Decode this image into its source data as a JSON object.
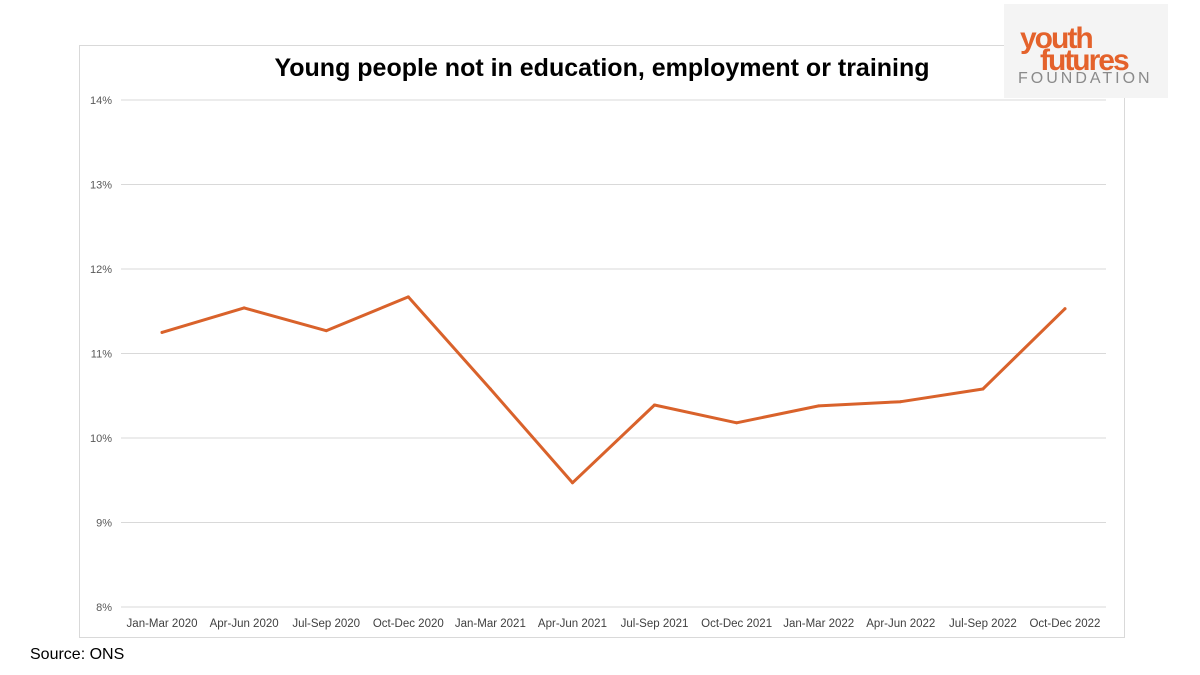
{
  "logo": {
    "line1": "youth",
    "line2": "futures",
    "line3": "FOUNDATION"
  },
  "source": "Source: ONS",
  "colors": {
    "line": "#d9622b",
    "grid": "#d9d9d9",
    "logo_orange": "#e4622b"
  },
  "chart_data": {
    "type": "line",
    "title": "Young people not in education, employment or training",
    "xlabel": "",
    "ylabel": "",
    "categories": [
      "Jan-Mar 2020",
      "Apr-Jun 2020",
      "Jul-Sep 2020",
      "Oct-Dec 2020",
      "Jan-Mar 2021",
      "Apr-Jun 2021",
      "Jul-Sep 2021",
      "Oct-Dec 2021",
      "Jan-Mar 2022",
      "Apr-Jun 2022",
      "Jul-Sep 2022",
      "Oct-Dec 2022"
    ],
    "series": [
      {
        "values": [
          11.25,
          11.54,
          11.27,
          11.67,
          10.58,
          9.47,
          10.39,
          10.18,
          10.38,
          10.43,
          10.58,
          11.53
        ]
      }
    ],
    "ylim": [
      8,
      14
    ],
    "yticks": [
      8,
      9,
      10,
      11,
      12,
      13,
      14
    ],
    "ytick_labels": [
      "8%",
      "9%",
      "10%",
      "11%",
      "12%",
      "13%",
      "14%"
    ],
    "grid": true,
    "legend": false
  }
}
